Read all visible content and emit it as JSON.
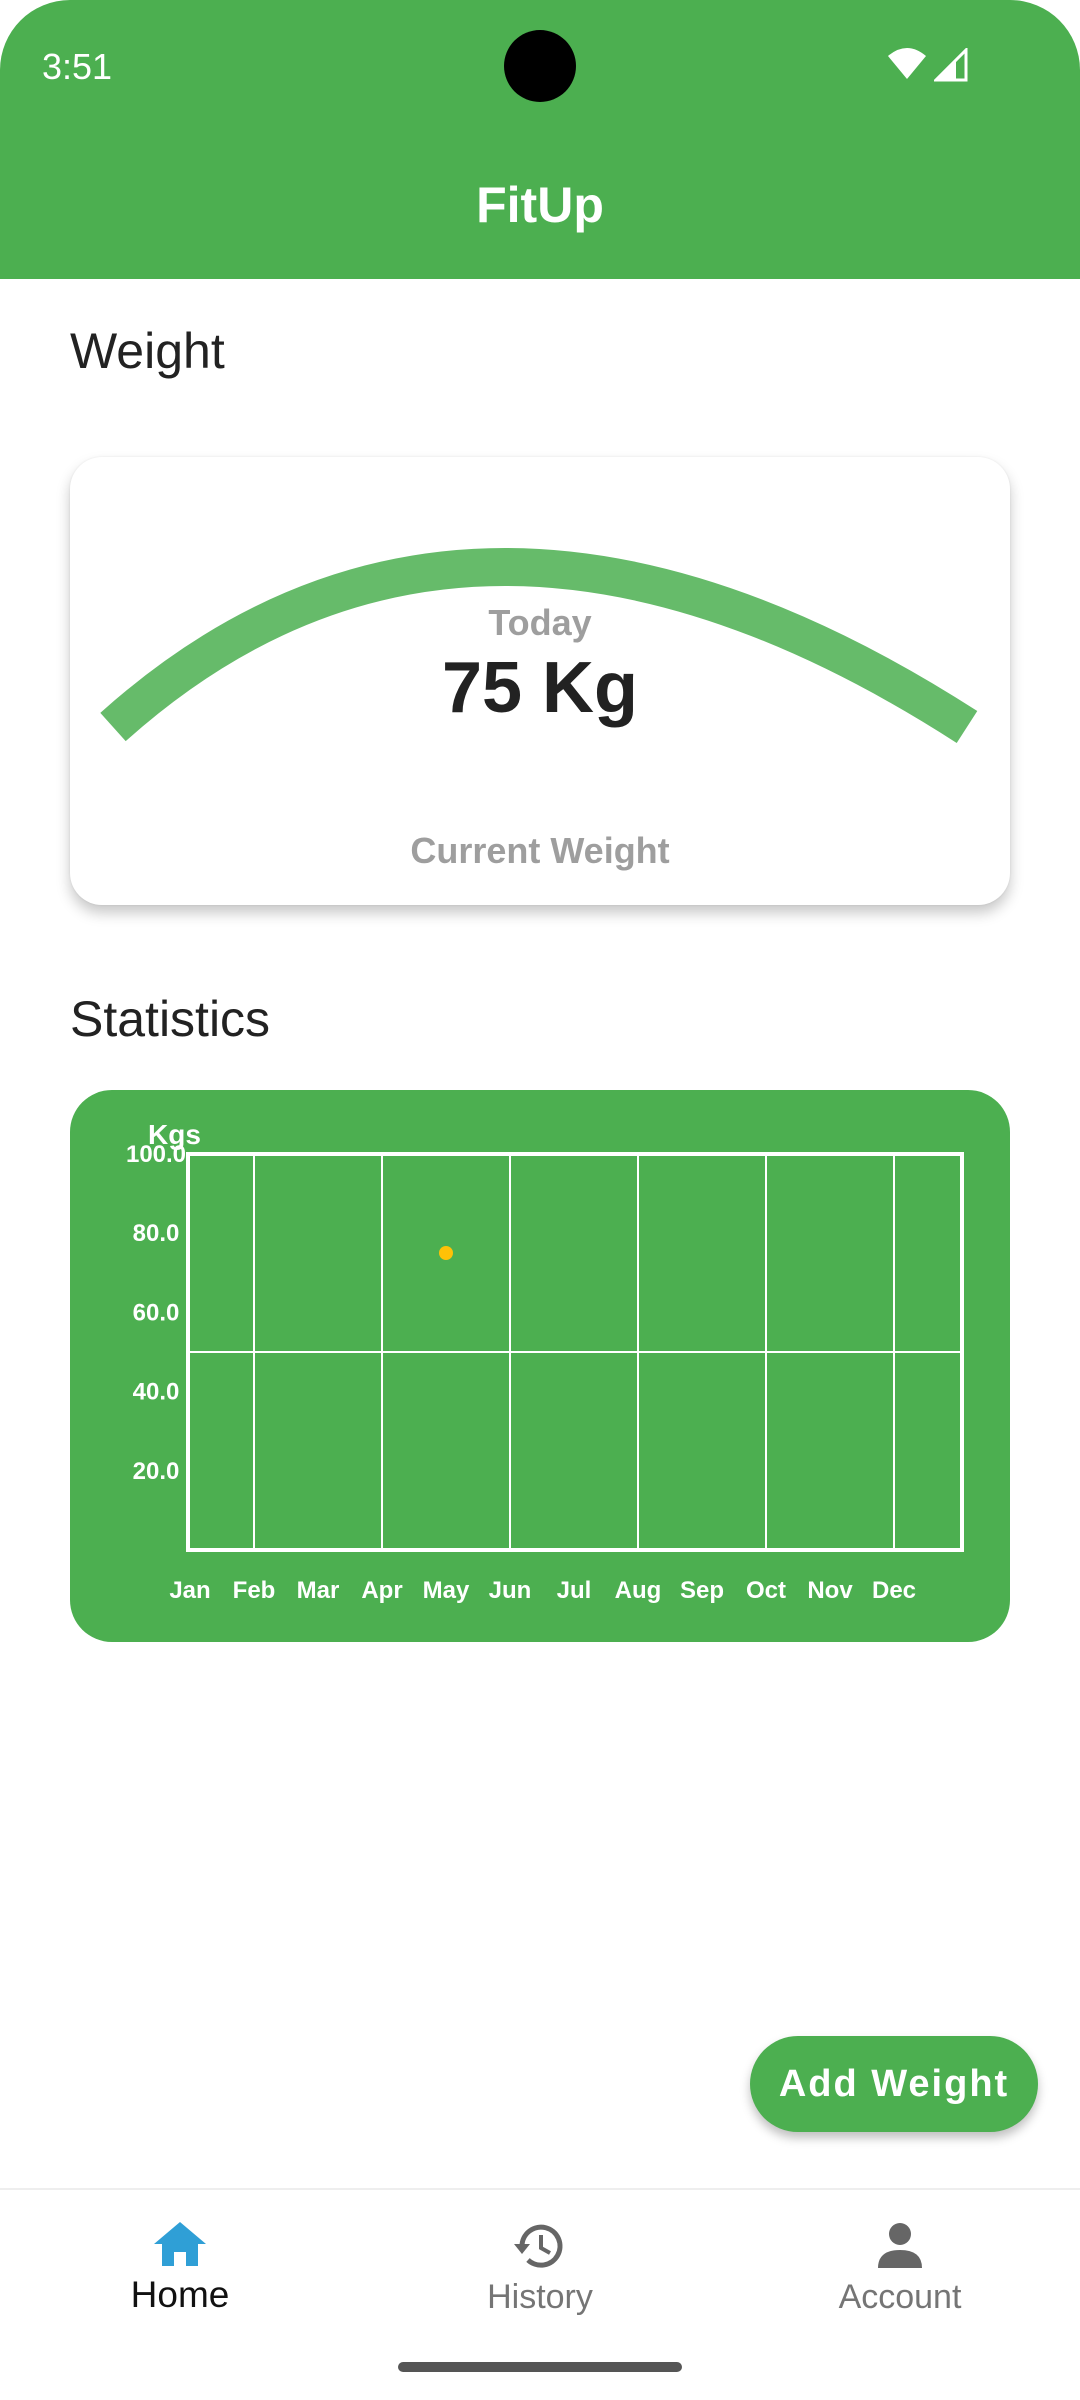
{
  "status_bar": {
    "time": "3:51"
  },
  "app_bar": {
    "title": "FitUp"
  },
  "weight_section": {
    "title": "Weight",
    "today_label": "Today",
    "value": "75 Kg",
    "current_label": "Current Weight"
  },
  "statistics_section": {
    "title": "Statistics"
  },
  "chart_data": {
    "type": "scatter",
    "ylabel": "Kgs",
    "categories": [
      "Jan",
      "Feb",
      "Mar",
      "Apr",
      "May",
      "Jun",
      "Jul",
      "Aug",
      "Sep",
      "Oct",
      "Nov",
      "Dec"
    ],
    "y_ticks": [
      "20.0",
      "40.0",
      "60.0",
      "80.0",
      "100.0"
    ],
    "ylim": [
      0,
      100
    ],
    "grid": true,
    "series": [
      {
        "points": [
          {
            "x": "May",
            "y": 75
          }
        ]
      }
    ],
    "colors": {
      "background": "#4caf50",
      "grid": "#ffffff",
      "point": "#ffc107",
      "text": "#ffffff"
    }
  },
  "fab": {
    "label": "Add Weight"
  },
  "bottom_nav": {
    "items": [
      {
        "label": "Home",
        "icon": "home-icon",
        "active": true
      },
      {
        "label": "History",
        "icon": "history-icon",
        "active": false
      },
      {
        "label": "Account",
        "icon": "account-icon",
        "active": false
      }
    ]
  },
  "colors": {
    "primary": "#4caf50",
    "arc": "#66bb6a",
    "active_icon": "#2f9fd6"
  }
}
